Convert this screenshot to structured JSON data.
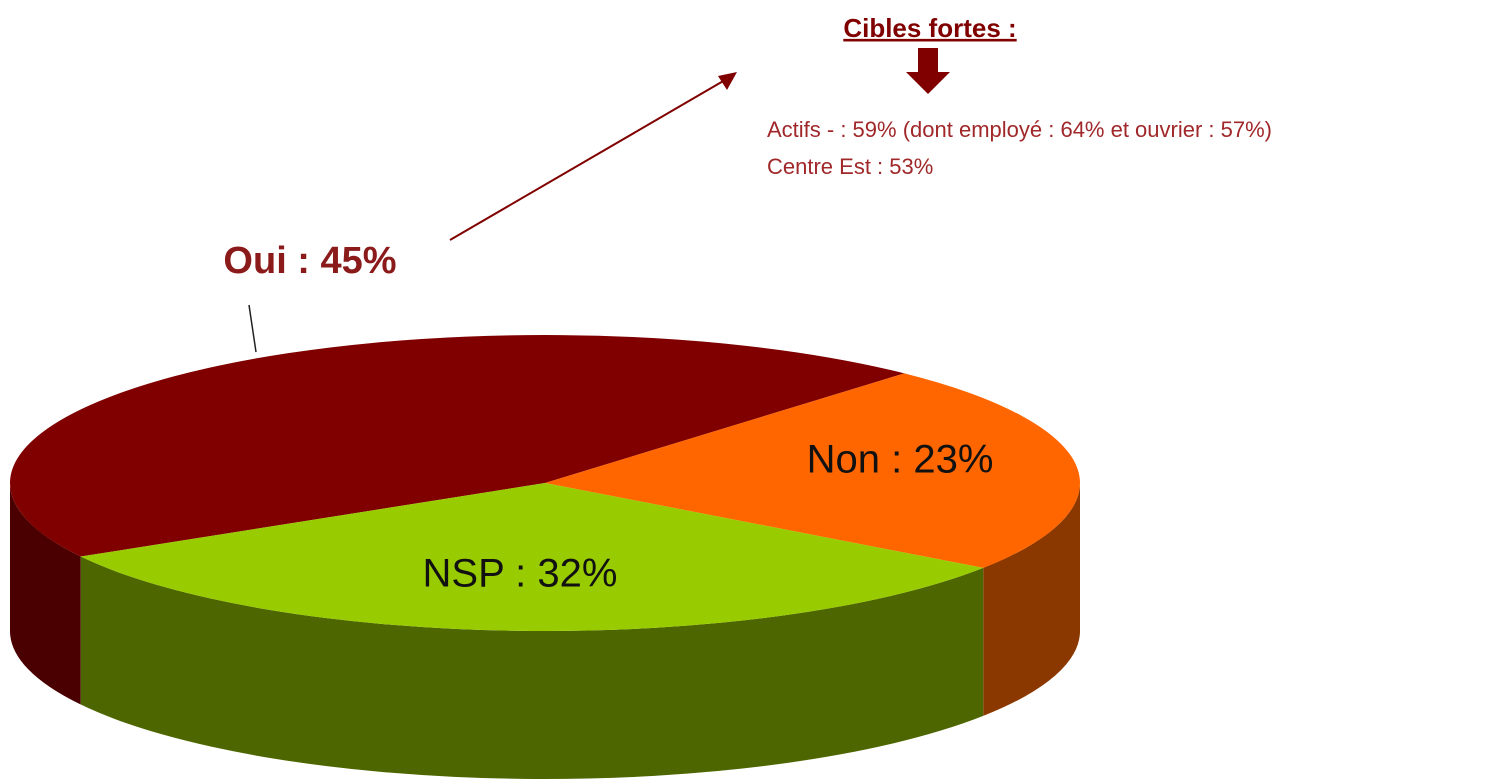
{
  "chart_data": {
    "type": "pie3d",
    "values": [
      45,
      23,
      32
    ],
    "value_labels": [
      "Oui : 45%",
      "Non : 23%",
      "NSP : 32%"
    ],
    "colors": [
      "#800000",
      "#ff6600",
      "#99cc00"
    ],
    "side_colors": [
      "#4a0000",
      "#8a3800",
      "#4d6600"
    ],
    "annotation": {
      "title": "Cibles fortes :",
      "lines": [
        "Actifs - : 59% (dont employé : 64% et ouvrier : 57%)",
        "Centre Est : 53%"
      ]
    }
  }
}
